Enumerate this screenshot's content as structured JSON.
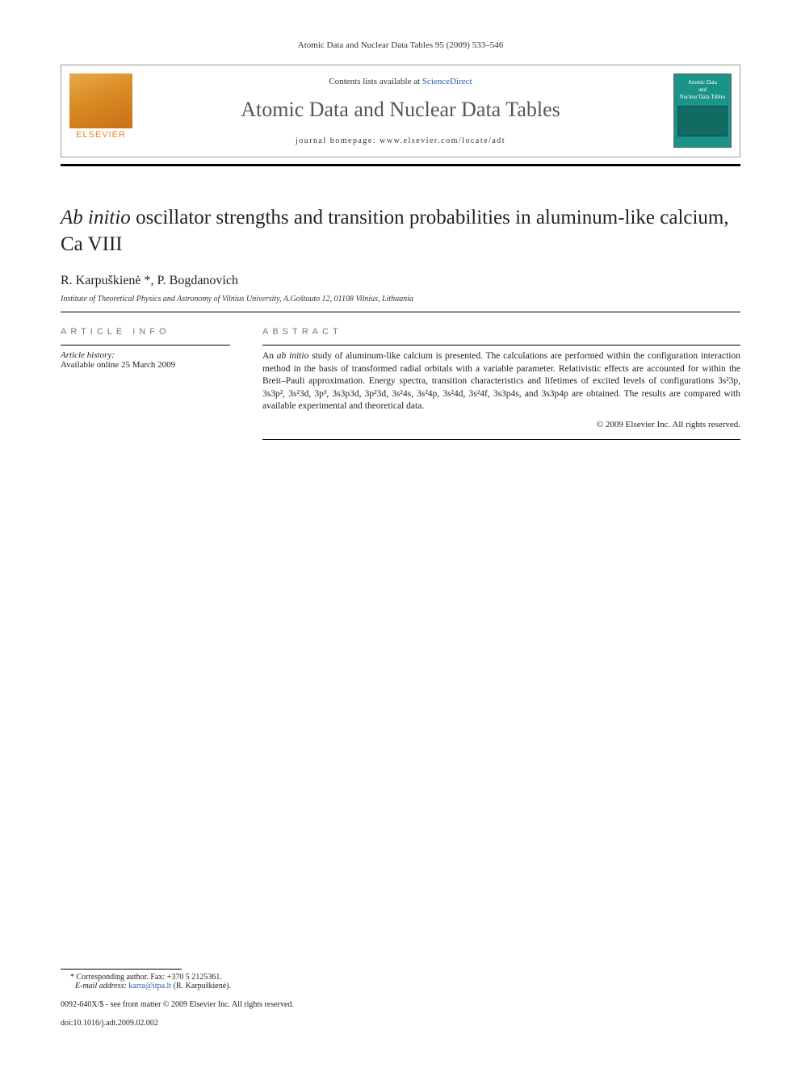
{
  "citation": "Atomic Data and Nuclear Data Tables 95 (2009) 533–546",
  "header": {
    "contents_prefix": "Contents lists available at ",
    "contents_link": "ScienceDirect",
    "journal_name": "Atomic Data and Nuclear Data Tables",
    "homepage": "journal homepage: www.elsevier.com/locate/adt",
    "publisher_label": "ELSEVIER",
    "cover_line1": "Atomic Data",
    "cover_line2": "and",
    "cover_line3": "Nuclear Data Tables"
  },
  "title": {
    "prefix_italic": "Ab initio",
    "rest": " oscillator strengths and transition probabilities in aluminum-like calcium, Ca VIII"
  },
  "authors": "R. Karpuškienė *, P. Bogdanovich",
  "affiliation": "Institute of Theoretical Physics and Astronomy of Vilnius University, A.Goštauto 12, 01108 Vilnius, Lithuania",
  "info": {
    "heading": "article info",
    "history_label": "Article history:",
    "history_text": "Available online 25 March 2009"
  },
  "abstract": {
    "heading": "abstract",
    "text_pre": "An ",
    "text_italic": "ab initio",
    "text_post": " study of aluminum-like calcium is presented. The calculations are performed within the configuration interaction method in the basis of transformed radial orbitals with a variable parameter. Relativistic effects are accounted for within the Breit–Pauli approximation. Energy spectra, transition characteristics and lifetimes of excited levels of configurations 3s²3p, 3s3p², 3s²3d, 3p³, 3s3p3d, 3p²3d, 3s²4s, 3s²4p, 3s²4d, 3s²4f, 3s3p4s, and 3s3p4p are obtained. The results are compared with available experimental and theoretical data.",
    "copyright": "© 2009 Elsevier Inc. All rights reserved."
  },
  "footer": {
    "corresponding": "* Corresponding author. Fax: +370 5 2125361.",
    "email_label": "E-mail address:",
    "email": "karra@itpa.lt",
    "email_suffix": " (R. Karpuškienė).",
    "front_matter": "0092-640X/$ - see front matter © 2009 Elsevier Inc. All rights reserved.",
    "doi": "doi:10.1016/j.adt.2009.02.002"
  },
  "colors": {
    "link": "#2a5db0",
    "orange": "#e88820",
    "teal": "#1a9488"
  }
}
